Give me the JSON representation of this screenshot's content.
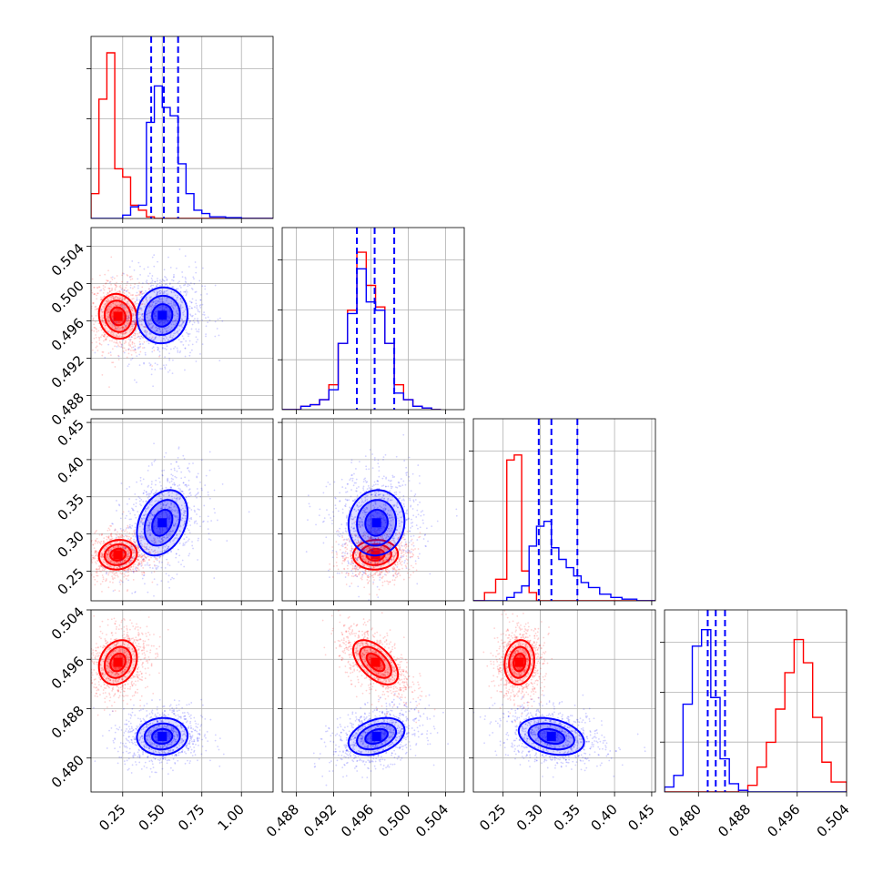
{
  "chart_data": {
    "type": "corner",
    "colors": {
      "red": "#ff0000",
      "blue": "#0000ff"
    },
    "params": [
      {
        "lim": [
          0.05,
          1.2
        ],
        "ticks": [
          "0.25",
          "0.50",
          "0.75",
          "1.00"
        ],
        "tick_values": [
          0.25,
          0.5,
          0.75,
          1.0
        ]
      },
      {
        "lim": [
          0.4865,
          0.506
        ],
        "ticks": [
          "0.488",
          "0.492",
          "0.496",
          "0.500",
          "0.504"
        ],
        "tick_values": [
          0.488,
          0.492,
          0.496,
          0.5,
          0.504
        ]
      },
      {
        "lim": [
          0.21,
          0.455
        ],
        "ticks": [
          "0.25",
          "0.30",
          "0.35",
          "0.40",
          "0.45"
        ],
        "tick_values": [
          0.25,
          0.3,
          0.35,
          0.4,
          0.45
        ]
      },
      {
        "lim": [
          0.4745,
          0.504
        ],
        "ticks": [
          "0.480",
          "0.488",
          "0.496",
          "0.504"
        ],
        "tick_values": [
          0.48,
          0.488,
          0.496,
          0.504
        ]
      }
    ],
    "series": [
      {
        "name": "",
        "color": "#ff0000",
        "mean": [
          0.22,
          0.4965,
          0.272,
          0.4955
        ],
        "sd": [
          0.06,
          0.0012,
          0.01,
          0.0018
        ],
        "corr": [
          [
            0,
            -0.1,
            0.1,
            0.2
          ],
          [
            -0.1,
            0,
            0.05,
            -0.55
          ],
          [
            0.1,
            0.05,
            0,
            0.1
          ],
          [
            0.2,
            -0.55,
            0.1,
            0
          ]
        ]
      },
      {
        "name": "",
        "color": "#0000ff",
        "mean": [
          0.5,
          0.4966,
          0.315,
          0.4835
        ],
        "sd": [
          0.08,
          0.0015,
          0.022,
          0.0015
        ],
        "corr": [
          [
            0,
            0.05,
            0.3,
            0.05
          ],
          [
            0.05,
            0,
            0.05,
            0.35
          ],
          [
            0.3,
            0.05,
            0,
            -0.3
          ],
          [
            0.05,
            0.35,
            -0.3,
            0
          ]
        ]
      }
    ],
    "quantile_lines": {
      "color": "#0000ff",
      "values": [
        [
          0.43,
          0.51,
          0.6
        ],
        [
          0.4945,
          0.4964,
          0.4985
        ],
        [
          0.298,
          0.315,
          0.35
        ],
        [
          0.4815,
          0.4828,
          0.4843
        ]
      ]
    },
    "diag_hist": [
      {
        "bins": [
          0.05,
          0.1,
          0.15,
          0.2,
          0.25,
          0.3,
          0.35,
          0.4,
          0.45,
          0.5,
          0.55,
          0.6,
          0.65,
          0.7,
          0.75,
          0.8,
          0.85,
          0.9,
          1.0,
          1.2
        ],
        "red": [
          0.15,
          0.72,
          1.0,
          0.3,
          0.25,
          0.08,
          0.05,
          0.01,
          0.0,
          0,
          0,
          0,
          0,
          0,
          0,
          0,
          0,
          0,
          0
        ],
        "blue": [
          0,
          0,
          0,
          0,
          0.02,
          0.07,
          0.08,
          0.58,
          0.8,
          0.67,
          0.62,
          0.33,
          0.15,
          0.05,
          0.03,
          0.01,
          0.01,
          0.005,
          0
        ]
      },
      {
        "bins": [
          0.4865,
          0.4875,
          0.4885,
          0.4895,
          0.4905,
          0.4915,
          0.4925,
          0.4935,
          0.4945,
          0.4955,
          0.4965,
          0.4975,
          0.4985,
          0.4995,
          0.5005,
          0.5015,
          0.5025,
          0.5035
        ],
        "red": [
          0,
          0,
          0.02,
          0.03,
          0.06,
          0.15,
          0.4,
          0.6,
          0.95,
          0.75,
          0.62,
          0.4,
          0.15,
          0.06,
          0.02,
          0.01,
          0
        ],
        "blue": [
          0,
          0,
          0.02,
          0.03,
          0.06,
          0.12,
          0.4,
          0.58,
          0.85,
          0.65,
          0.6,
          0.4,
          0.1,
          0.06,
          0.02,
          0.01,
          0
        ]
      },
      {
        "bins": [
          0.21,
          0.225,
          0.24,
          0.255,
          0.265,
          0.275,
          0.285,
          0.295,
          0.305,
          0.315,
          0.325,
          0.335,
          0.345,
          0.355,
          0.365,
          0.38,
          0.395,
          0.41,
          0.43,
          0.455
        ],
        "red": [
          0,
          0.05,
          0.13,
          0.85,
          0.88,
          0.18,
          0.05,
          0,
          0,
          0,
          0,
          0,
          0,
          0,
          0,
          0,
          0,
          0,
          0
        ],
        "blue": [
          0,
          0,
          0,
          0.02,
          0.05,
          0.09,
          0.33,
          0.45,
          0.48,
          0.32,
          0.25,
          0.2,
          0.15,
          0.11,
          0.08,
          0.04,
          0.02,
          0.01,
          0
        ]
      },
      {
        "bins": [
          0.4745,
          0.476,
          0.4775,
          0.479,
          0.4805,
          0.482,
          0.4835,
          0.485,
          0.4865,
          0.488,
          0.4895,
          0.491,
          0.4925,
          0.494,
          0.4955,
          0.497,
          0.4985,
          0.5,
          0.5015,
          0.504
        ],
        "red": [
          0,
          0,
          0,
          0,
          0,
          0,
          0,
          0,
          0.01,
          0.04,
          0.15,
          0.3,
          0.5,
          0.72,
          0.92,
          0.78,
          0.45,
          0.18,
          0.06
        ],
        "blue": [
          0.03,
          0.1,
          0.53,
          0.88,
          0.98,
          0.57,
          0.2,
          0.05,
          0.01,
          0,
          0,
          0,
          0,
          0,
          0,
          0,
          0,
          0,
          0
        ]
      }
    ]
  }
}
